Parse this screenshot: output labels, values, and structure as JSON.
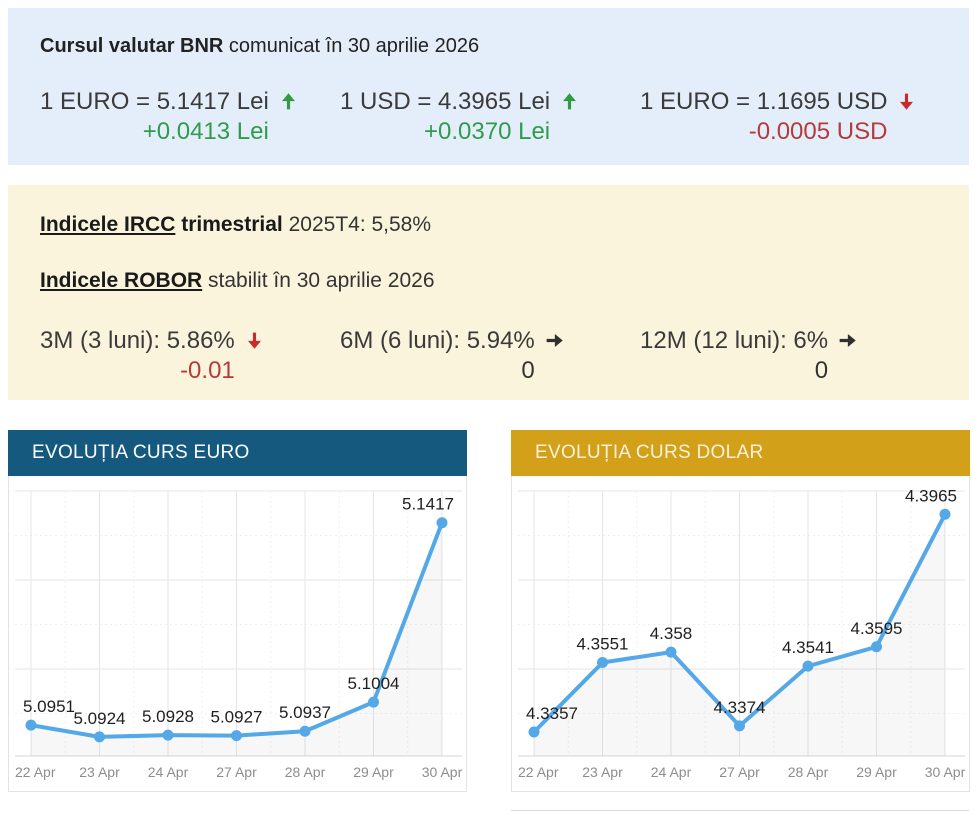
{
  "bnr": {
    "title_bold": "Cursul valutar BNR",
    "title_rest": " comunicat în 30 aprilie 2026",
    "rates": [
      {
        "label": "1 EURO = 5.1417 Lei",
        "change": "+0.0413 Lei",
        "direction": "up"
      },
      {
        "label": "1 USD = 4.3965 Lei",
        "change": "+0.0370 Lei",
        "direction": "up"
      },
      {
        "label": "1 EURO = 1.1695 USD",
        "change": "-0.0005 USD",
        "direction": "down"
      }
    ]
  },
  "indices": {
    "ircc": {
      "link": "Indicele IRCC",
      "bold": " trimestrial",
      "rest": " 2025T4: 5,58%"
    },
    "robor": {
      "link": "Indicele ROBOR",
      "rest": " stabilit în 30 aprilie 2026"
    },
    "robor_rates": [
      {
        "label": "3M (3 luni): 5.86%",
        "change": "-0.01",
        "direction": "down"
      },
      {
        "label": "6M (6 luni): 5.94%",
        "change": "0",
        "direction": "flat"
      },
      {
        "label": "12M (12 luni): 6%",
        "change": "0",
        "direction": "flat"
      }
    ]
  },
  "chart_data": [
    {
      "type": "line",
      "title": "EVOLUȚIA CURS EURO",
      "categories": [
        "22 Apr",
        "23 Apr",
        "24 Apr",
        "27 Apr",
        "28 Apr",
        "29 Apr",
        "30 Apr"
      ],
      "values": [
        5.0951,
        5.0924,
        5.0928,
        5.0927,
        5.0937,
        5.1004,
        5.1417
      ],
      "point_labels": [
        "5.0951",
        "5.0924",
        "5.0928",
        "5.0927",
        "5.0937",
        "5.1004",
        "5.1417"
      ],
      "xlabel": "",
      "ylabel": "",
      "ylim": [
        5.088,
        5.149
      ],
      "grid": true,
      "legend": "none",
      "header_color": "#15597e",
      "title_color": "#ffffff",
      "line_color": "#55a8e7"
    },
    {
      "type": "line",
      "title": "EVOLUȚIA CURS DOLAR",
      "categories": [
        "22 Apr",
        "23 Apr",
        "24 Apr",
        "27 Apr",
        "28 Apr",
        "29 Apr",
        "30 Apr"
      ],
      "values": [
        4.3357,
        4.3551,
        4.358,
        4.3374,
        4.3541,
        4.3595,
        4.3965
      ],
      "point_labels": [
        "4.3357",
        "4.3551",
        "4.358",
        "4.3374",
        "4.3541",
        "4.3595",
        "4.3965"
      ],
      "xlabel": "",
      "ylabel": "",
      "ylim": [
        4.329,
        4.403
      ],
      "grid": true,
      "legend": "none",
      "header_color": "#d2a019",
      "title_color": "#f9f2da",
      "line_color": "#55a8e7"
    }
  ],
  "colors": {
    "bnr_box_bg": "#e4eefa",
    "indices_box_bg": "#fbf4dd",
    "up_green_arrow": "#2e9c3f",
    "up_green_text": "#2e9c4a",
    "down_red_arrow": "#cb2a2a",
    "down_red_text": "#b53b3b",
    "neutral_dark": "#303030",
    "euro_header": "#15597e",
    "dolar_header": "#d2a019",
    "chart_line": "#55a8e7"
  }
}
